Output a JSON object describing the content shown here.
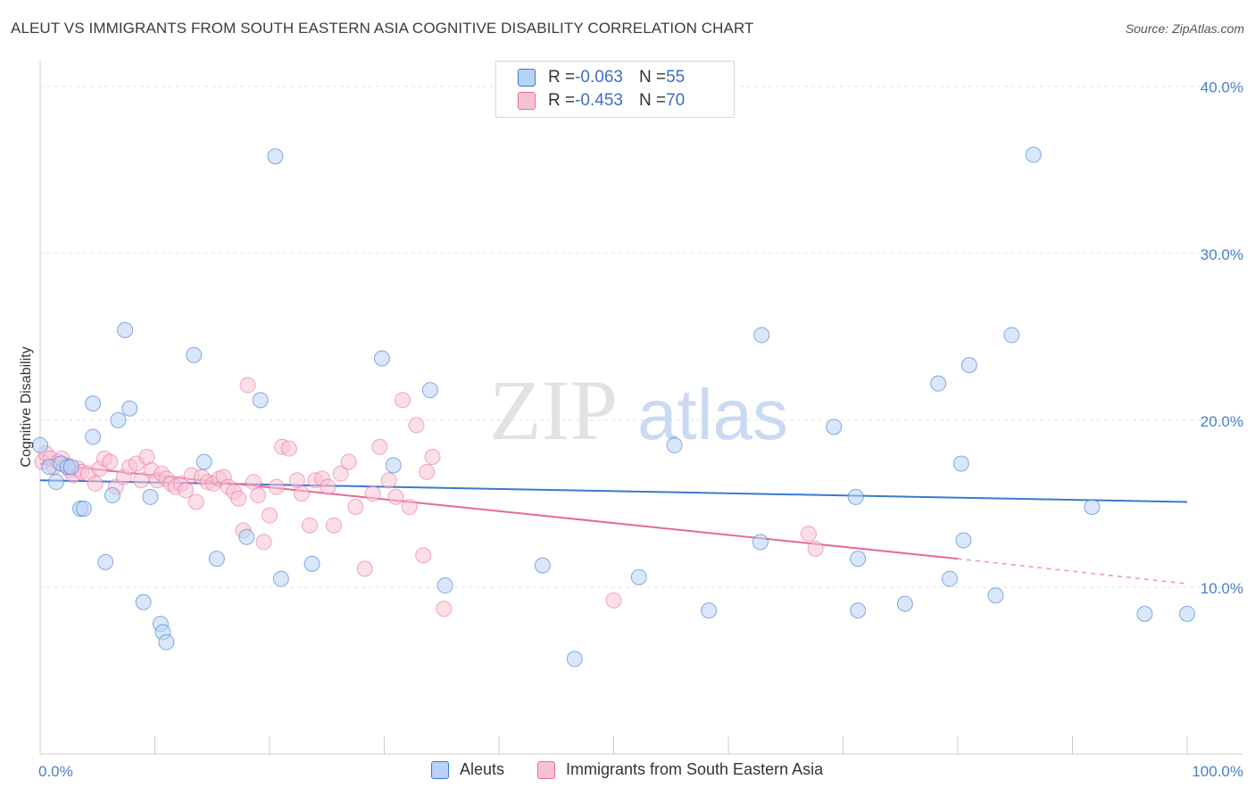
{
  "title": "ALEUT VS IMMIGRANTS FROM SOUTH EASTERN ASIA COGNITIVE DISABILITY CORRELATION CHART",
  "source": "Source: ZipAtlas.com",
  "watermark": {
    "part1": "ZIP",
    "part2": "atlas"
  },
  "colors": {
    "blue": "#3a78d0",
    "blue_fill": "#b8d3f5",
    "pink": "#e8689a",
    "pink_fill": "#f7c3d4",
    "axis_text": "#4a7fc8"
  },
  "legend": {
    "rows": [
      {
        "r_label": "R = ",
        "r_value": "-0.063",
        "n_label": "N = ",
        "n_value": "55"
      },
      {
        "r_label": "R = ",
        "r_value": "-0.453",
        "n_label": "N = ",
        "n_value": "70"
      }
    ]
  },
  "bottom_legend": [
    "Aleuts",
    "Immigrants from South Eastern Asia"
  ],
  "chart_data": {
    "type": "scatter",
    "title": "ALEUT VS IMMIGRANTS FROM SOUTH EASTERN ASIA COGNITIVE DISABILITY CORRELATION CHART",
    "xlabel": "",
    "ylabel": "Cognitive Disability",
    "xlim": [
      0,
      100
    ],
    "ylim": [
      0,
      41
    ],
    "x_tick_labels": [
      "0.0%",
      "100.0%"
    ],
    "y_ticks": [
      10,
      20,
      30,
      40
    ],
    "y_tick_labels": [
      "10.0%",
      "20.0%",
      "30.0%",
      "40.0%"
    ],
    "grid": "horizontal dashed",
    "legend_position": "top-center",
    "series": [
      {
        "name": "Aleuts",
        "color": "#3a78d0",
        "trend": {
          "x": [
            0,
            100
          ],
          "y": [
            16.4,
            15.1
          ]
        },
        "points": [
          [
            0,
            18.5
          ],
          [
            0.8,
            17.2
          ],
          [
            1.4,
            16.3
          ],
          [
            1.8,
            17.4
          ],
          [
            2.4,
            17.2
          ],
          [
            2.7,
            17.2
          ],
          [
            3.5,
            14.7
          ],
          [
            3.8,
            14.7
          ],
          [
            4.6,
            19.0
          ],
          [
            4.6,
            21.0
          ],
          [
            5.7,
            11.5
          ],
          [
            6.3,
            15.5
          ],
          [
            6.8,
            20.0
          ],
          [
            7.4,
            25.4
          ],
          [
            7.8,
            20.7
          ],
          [
            9.0,
            9.1
          ],
          [
            9.6,
            15.4
          ],
          [
            10.5,
            7.8
          ],
          [
            10.7,
            7.3
          ],
          [
            11.0,
            6.7
          ],
          [
            13.4,
            23.9
          ],
          [
            14.3,
            17.5
          ],
          [
            15.4,
            11.7
          ],
          [
            18.0,
            13.0
          ],
          [
            19.2,
            21.2
          ],
          [
            20.5,
            35.8
          ],
          [
            21.0,
            10.5
          ],
          [
            23.7,
            11.4
          ],
          [
            29.8,
            23.7
          ],
          [
            30.8,
            17.3
          ],
          [
            34.0,
            21.8
          ],
          [
            35.3,
            10.1
          ],
          [
            43.8,
            11.3
          ],
          [
            46.6,
            5.7
          ],
          [
            52.2,
            10.6
          ],
          [
            55.3,
            18.5
          ],
          [
            58.3,
            8.6
          ],
          [
            62.8,
            12.7
          ],
          [
            62.9,
            25.1
          ],
          [
            69.2,
            19.6
          ],
          [
            71.1,
            15.4
          ],
          [
            71.3,
            8.6
          ],
          [
            71.3,
            11.7
          ],
          [
            75.4,
            9.0
          ],
          [
            78.3,
            22.2
          ],
          [
            79.3,
            10.5
          ],
          [
            80.3,
            17.4
          ],
          [
            80.5,
            12.8
          ],
          [
            81.0,
            23.3
          ],
          [
            83.3,
            9.5
          ],
          [
            84.7,
            25.1
          ],
          [
            86.6,
            35.9
          ],
          [
            91.7,
            14.8
          ],
          [
            96.3,
            8.4
          ],
          [
            100,
            8.4
          ]
        ]
      },
      {
        "name": "Immigrants from South Eastern Asia",
        "color": "#e8689a",
        "trend": {
          "x": [
            0,
            80
          ],
          "y": [
            17.4,
            11.7
          ]
        },
        "trend_ext": {
          "x": [
            80,
            100
          ],
          "y": [
            11.7,
            10.2
          ]
        },
        "points": [
          [
            0.2,
            17.5
          ],
          [
            0.5,
            18.0
          ],
          [
            0.9,
            17.7
          ],
          [
            1.2,
            17.2
          ],
          [
            1.6,
            17.5
          ],
          [
            1.9,
            17.7
          ],
          [
            2.3,
            17.3
          ],
          [
            2.6,
            17.0
          ],
          [
            2.9,
            16.7
          ],
          [
            3.3,
            17.1
          ],
          [
            3.6,
            16.9
          ],
          [
            4.2,
            16.8
          ],
          [
            4.8,
            16.2
          ],
          [
            5.2,
            17.1
          ],
          [
            5.6,
            17.7
          ],
          [
            6.1,
            17.5
          ],
          [
            6.6,
            16.0
          ],
          [
            7.3,
            16.6
          ],
          [
            7.8,
            17.2
          ],
          [
            8.4,
            17.4
          ],
          [
            8.8,
            16.4
          ],
          [
            9.3,
            17.8
          ],
          [
            9.7,
            17.0
          ],
          [
            10.2,
            16.4
          ],
          [
            10.6,
            16.8
          ],
          [
            11.0,
            16.5
          ],
          [
            11.4,
            16.2
          ],
          [
            11.8,
            16.0
          ],
          [
            12.3,
            16.2
          ],
          [
            12.7,
            15.8
          ],
          [
            13.2,
            16.7
          ],
          [
            13.6,
            15.1
          ],
          [
            14.1,
            16.6
          ],
          [
            14.6,
            16.3
          ],
          [
            15.1,
            16.2
          ],
          [
            15.6,
            16.5
          ],
          [
            16.0,
            16.6
          ],
          [
            16.4,
            16.0
          ],
          [
            16.9,
            15.7
          ],
          [
            17.3,
            15.3
          ],
          [
            17.7,
            13.4
          ],
          [
            18.1,
            22.1
          ],
          [
            18.6,
            16.3
          ],
          [
            19.0,
            15.5
          ],
          [
            19.5,
            12.7
          ],
          [
            20.0,
            14.3
          ],
          [
            20.6,
            16.0
          ],
          [
            21.1,
            18.4
          ],
          [
            21.7,
            18.3
          ],
          [
            22.4,
            16.4
          ],
          [
            22.8,
            15.6
          ],
          [
            23.5,
            13.7
          ],
          [
            24.0,
            16.4
          ],
          [
            24.6,
            16.5
          ],
          [
            25.1,
            16.0
          ],
          [
            25.6,
            13.7
          ],
          [
            26.2,
            16.8
          ],
          [
            26.9,
            17.5
          ],
          [
            27.5,
            14.8
          ],
          [
            28.3,
            11.1
          ],
          [
            29.0,
            15.6
          ],
          [
            29.6,
            18.4
          ],
          [
            30.4,
            16.4
          ],
          [
            31.0,
            15.4
          ],
          [
            31.6,
            21.2
          ],
          [
            32.2,
            14.8
          ],
          [
            32.8,
            19.7
          ],
          [
            33.4,
            11.9
          ],
          [
            33.7,
            16.9
          ],
          [
            34.2,
            17.8
          ]
        ]
      }
    ],
    "extra_points_pink": [
      [
        35.2,
        8.7
      ],
      [
        50.0,
        9.2
      ],
      [
        67.0,
        13.2
      ],
      [
        67.6,
        12.3
      ]
    ]
  }
}
